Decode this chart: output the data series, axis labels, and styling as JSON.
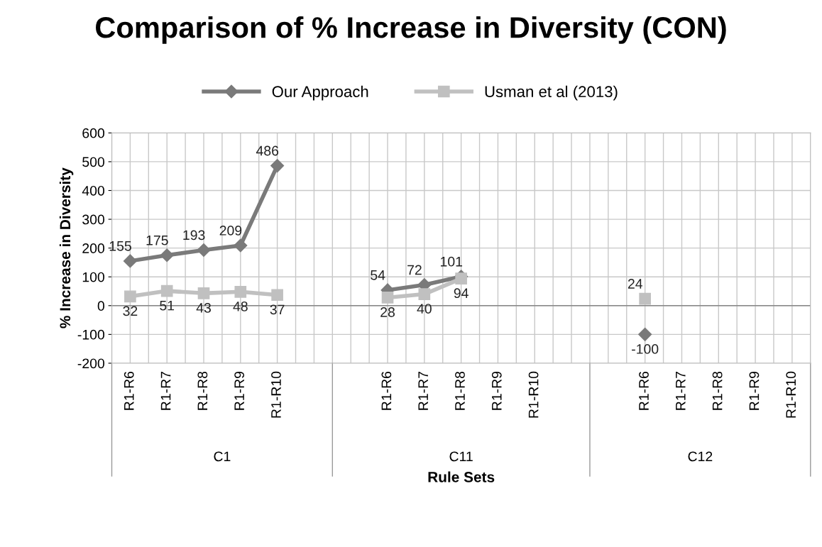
{
  "chart_data": {
    "type": "line",
    "title": "Comparison of % Increase in Diversity (CON)",
    "xlabel": "Rule Sets",
    "ylabel": "% Increase in Diversity",
    "categories": [
      "R1-R6",
      "R1-R7",
      "R1-R8",
      "R1-R9",
      "R1-R10",
      null,
      null,
      "R1-R6",
      "R1-R7",
      "R1-R8",
      "R1-R9",
      "R1-R10",
      null,
      null,
      "R1-R6",
      "R1-R7",
      "R1-R8",
      "R1-R9",
      "R1-R10"
    ],
    "annotations": [
      "C1",
      "C11",
      "C12"
    ],
    "series": [
      {
        "name": "Our Approach",
        "color": "#7a7a7a",
        "marker": "diamond",
        "values": [
          155,
          175,
          193,
          209,
          486,
          null,
          null,
          54,
          72,
          101,
          null,
          null,
          null,
          null,
          -100,
          null,
          null,
          null,
          null
        ]
      },
      {
        "name": "Usman et al (2013)",
        "color": "#c0c0c0",
        "marker": "square",
        "values": [
          32,
          51,
          43,
          48,
          37,
          null,
          null,
          28,
          40,
          94,
          null,
          null,
          null,
          null,
          24,
          null,
          null,
          null,
          null
        ]
      }
    ],
    "ylim": [
      -200,
      600
    ],
    "yticks": [
      -200,
      -100,
      0,
      100,
      200,
      300,
      400,
      500,
      600
    ],
    "grid": true,
    "legend": "top",
    "data_labels": true,
    "line_style": "solid"
  }
}
